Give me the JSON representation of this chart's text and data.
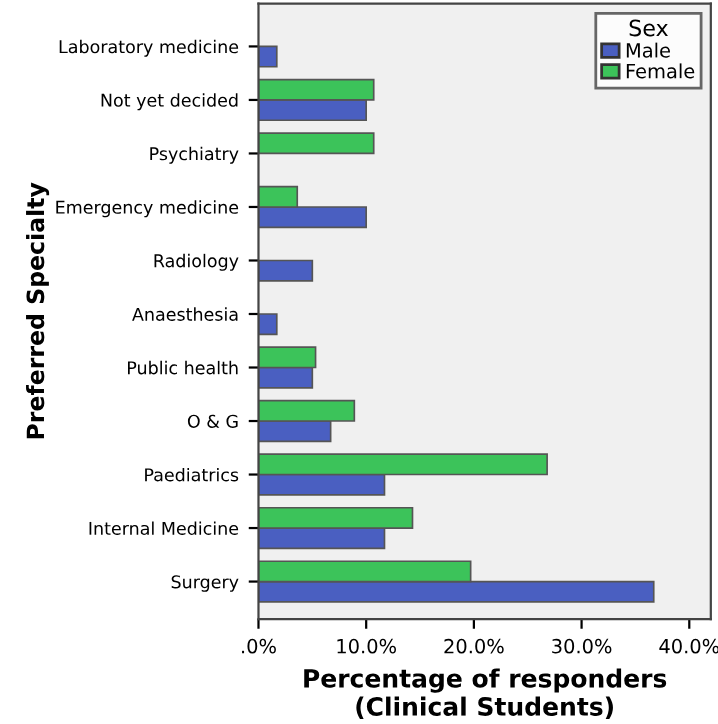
{
  "chart_data": {
    "type": "bar",
    "orientation": "horizontal",
    "xlabel": "Percentage of responders (Clinical Students)",
    "ylabel": "Preferred Specialty",
    "legend_title": "Sex",
    "categories": [
      "Laboratory medicine",
      "Not yet decided",
      "Psychiatry",
      "Emergency medicine",
      "Radiology",
      "Anaesthesia",
      "Public health",
      "O & G",
      "Paediatrics",
      "Internal Medicine",
      "Surgery"
    ],
    "series": [
      {
        "name": "Male",
        "color": "#4a5fc1",
        "values": [
          1.7,
          10.0,
          null,
          10.0,
          5.0,
          1.7,
          5.0,
          6.7,
          11.7,
          11.7,
          36.7
        ]
      },
      {
        "name": "Female",
        "color": "#3cc35a",
        "values": [
          null,
          10.7,
          10.7,
          3.6,
          null,
          null,
          5.3,
          8.9,
          26.8,
          14.3,
          19.7
        ]
      }
    ],
    "xlim": [
      0,
      42
    ],
    "xticks": [
      {
        "value": 0,
        "label": ".0%"
      },
      {
        "value": 10,
        "label": "10.0%"
      },
      {
        "value": 20,
        "label": "20.0%"
      },
      {
        "value": 30,
        "label": "30.0%"
      },
      {
        "value": 40,
        "label": "40.0%"
      }
    ],
    "legend": "top right",
    "grid": false
  }
}
